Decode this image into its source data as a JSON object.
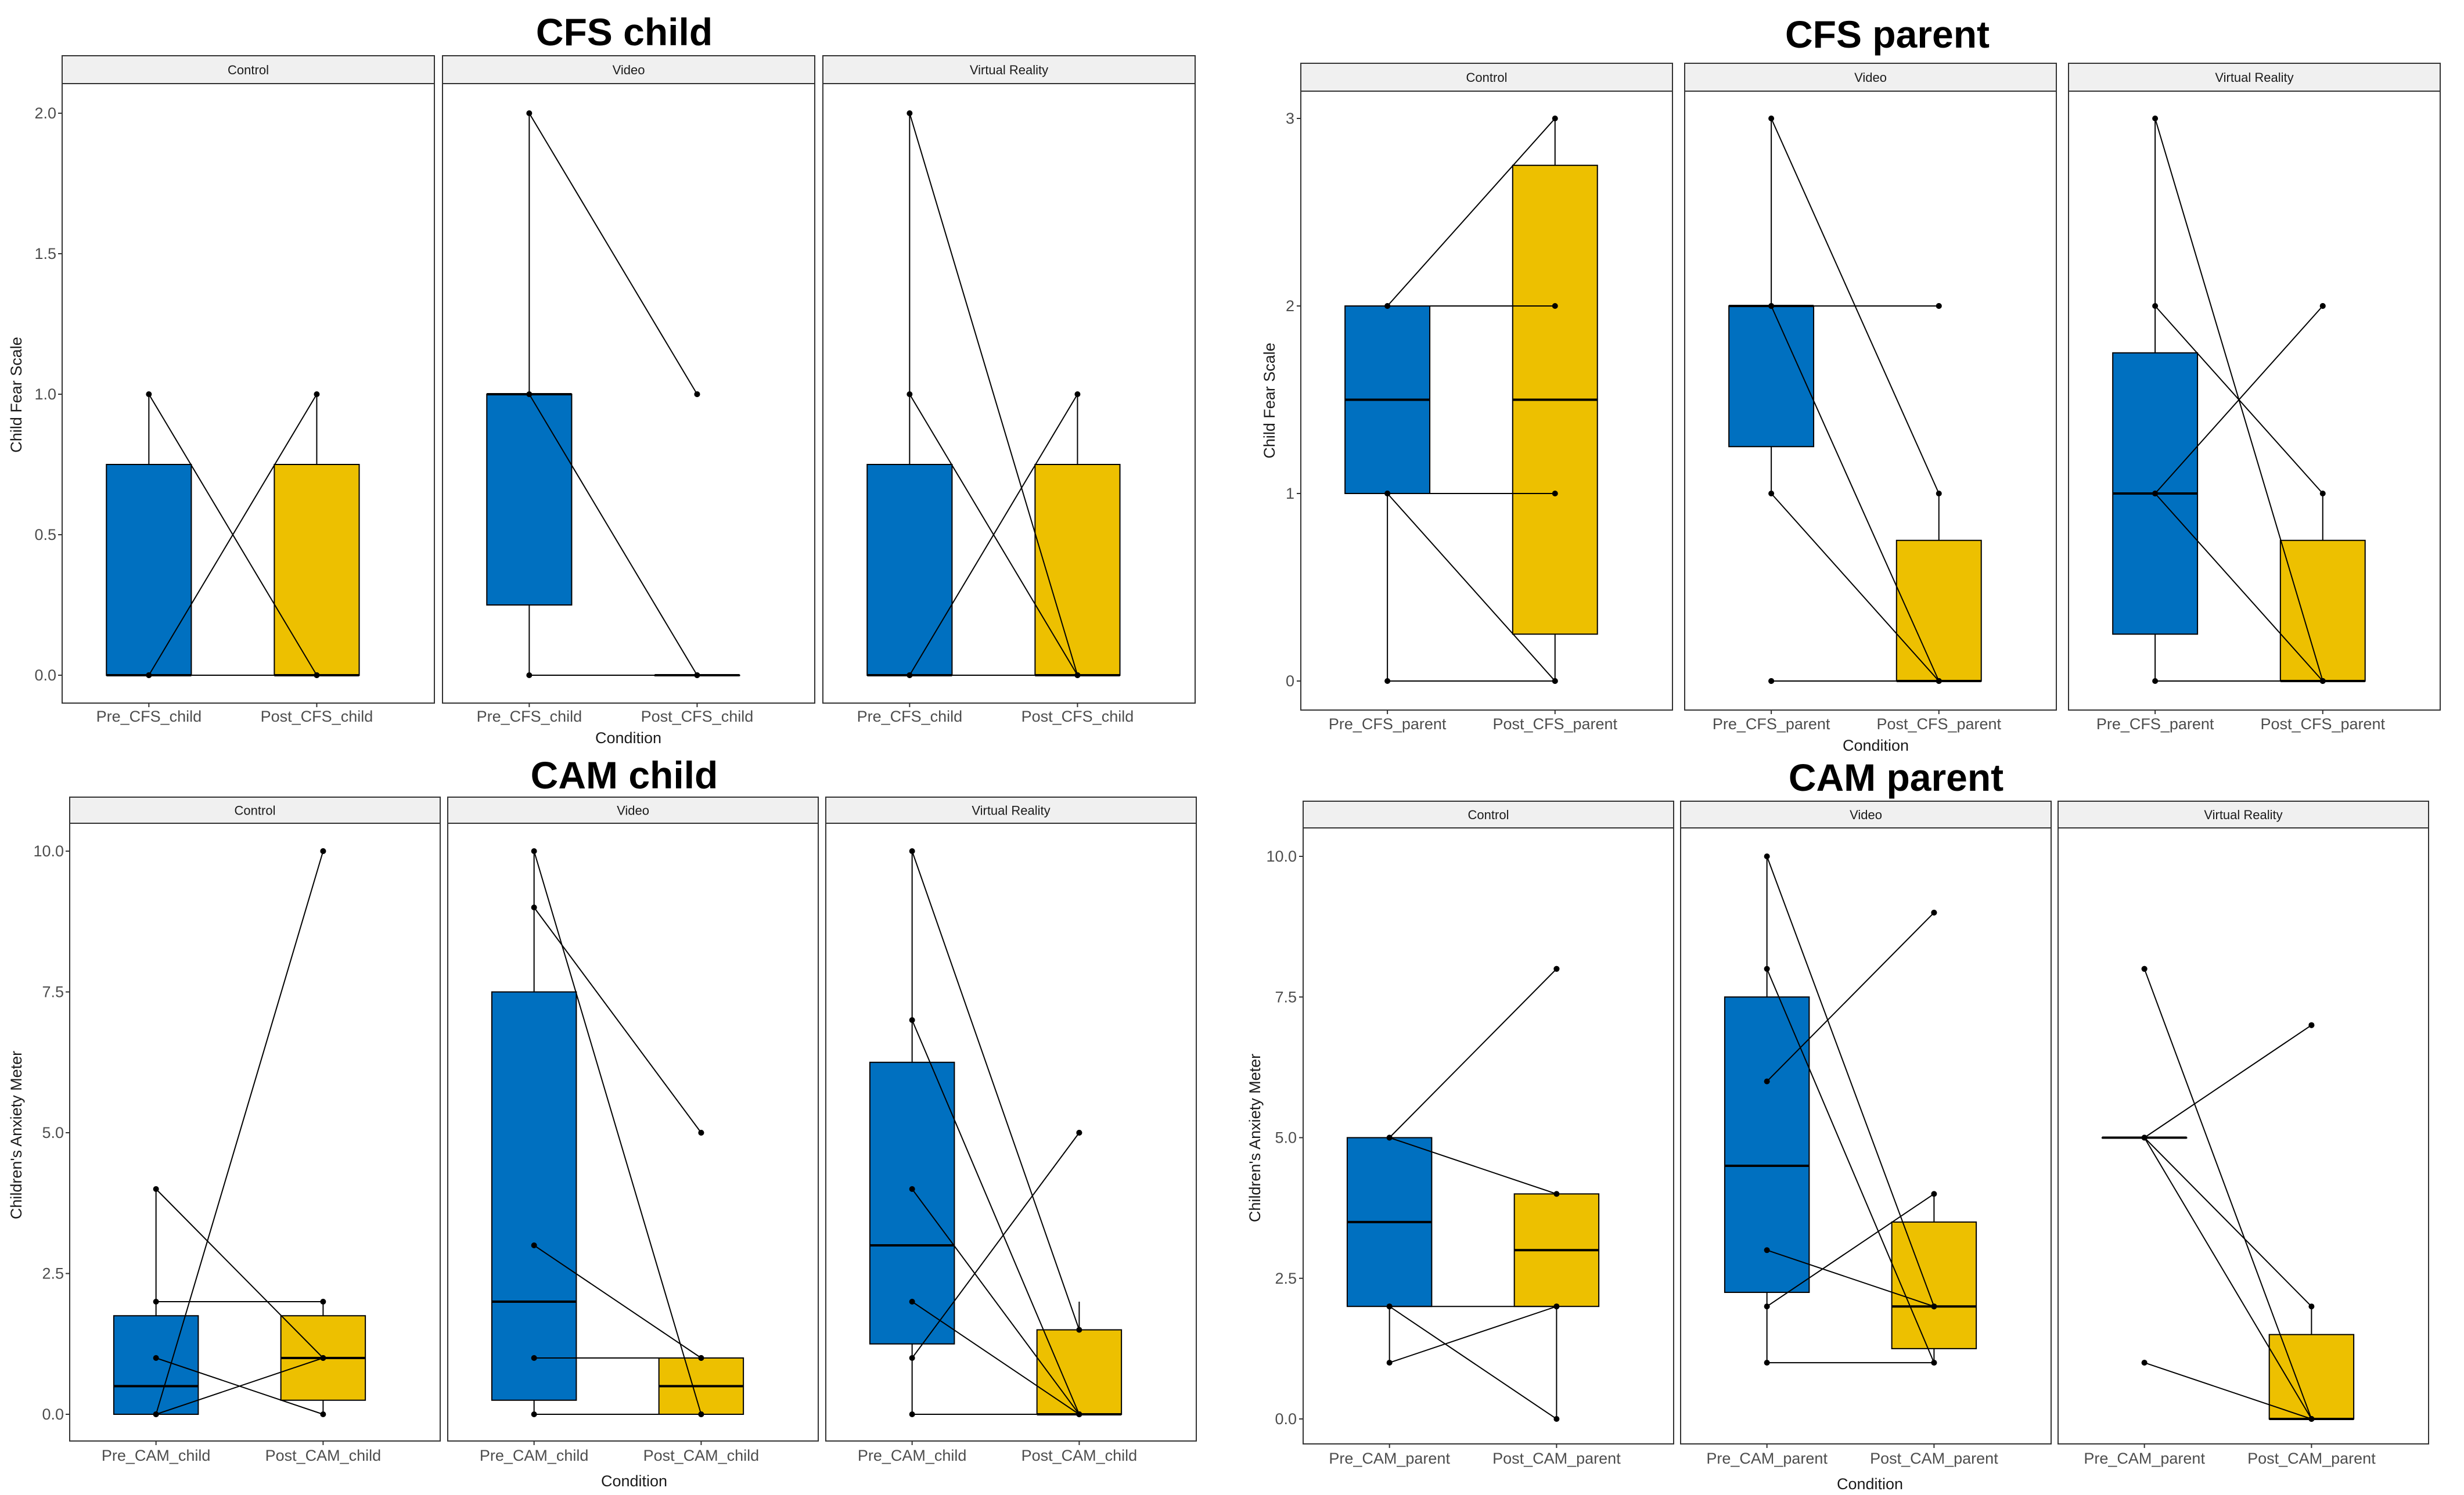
{
  "colors": {
    "pre": "#0070C0",
    "post": "#EDC000",
    "strip": "#F0F0F0",
    "frame": "#333333"
  },
  "chart_data": [
    {
      "type": "boxplot",
      "title": "CFS child",
      "xlabel": "Condition",
      "ylabel": "Child Fear Scale",
      "ylim": [
        0,
        2
      ],
      "yticks": [
        0,
        0.5,
        1,
        1.5,
        2
      ],
      "ytick_labels": [
        "0.0",
        "0.5",
        "1.0",
        "1.5",
        "2.0"
      ],
      "categories": [
        "Pre_CFS_child",
        "Post_CFS_child"
      ],
      "panels": [
        {
          "label": "Control",
          "pre": {
            "q1": 0,
            "median": 0,
            "q3": 0.75,
            "lo": 0,
            "hi": 1
          },
          "post": {
            "q1": 0,
            "median": 0,
            "q3": 0.75,
            "lo": 0,
            "hi": 1
          },
          "pairs": [
            [
              0,
              1
            ],
            [
              1,
              0
            ],
            [
              0,
              0
            ]
          ]
        },
        {
          "label": "Video",
          "pre": {
            "q1": 0.25,
            "median": 1,
            "q3": 1,
            "lo": 0,
            "hi": 2
          },
          "post": {
            "q1": 0,
            "median": 0,
            "q3": 0,
            "lo": 0,
            "hi": 0
          },
          "outliers_post": [
            1
          ],
          "pairs": [
            [
              2,
              1
            ],
            [
              1,
              0
            ],
            [
              0,
              0
            ]
          ]
        },
        {
          "label": "Virtual Reality",
          "pre": {
            "q1": 0,
            "median": 0,
            "q3": 0.75,
            "lo": 0,
            "hi": 2
          },
          "post": {
            "q1": 0,
            "median": 0,
            "q3": 0.75,
            "lo": 0,
            "hi": 1
          },
          "pairs": [
            [
              2,
              0
            ],
            [
              1,
              0
            ],
            [
              0,
              1
            ],
            [
              0,
              0
            ]
          ]
        }
      ]
    },
    {
      "type": "boxplot",
      "title": "CFS parent",
      "xlabel": "Condition",
      "ylabel": "Child Fear Scale",
      "ylim": [
        0,
        3
      ],
      "yticks": [
        0,
        1,
        2,
        3
      ],
      "ytick_labels": [
        "0",
        "1",
        "2",
        "3"
      ],
      "categories": [
        "Pre_CFS_parent",
        "Post_CFS_parent"
      ],
      "panels": [
        {
          "label": "Control",
          "pre": {
            "q1": 1,
            "median": 1.5,
            "q3": 2,
            "lo": 0,
            "hi": 2
          },
          "post": {
            "q1": 0.25,
            "median": 1.5,
            "q3": 2.75,
            "lo": 0,
            "hi": 3
          },
          "pairs": [
            [
              2,
              3
            ],
            [
              2,
              2
            ],
            [
              1,
              1
            ],
            [
              1,
              0
            ],
            [
              0,
              0
            ]
          ]
        },
        {
          "label": "Video",
          "pre": {
            "q1": 1.25,
            "median": 2,
            "q3": 2,
            "lo": 1,
            "hi": 3
          },
          "post": {
            "q1": 0,
            "median": 0,
            "q3": 0.75,
            "lo": 0,
            "hi": 1
          },
          "outliers_post": [
            2
          ],
          "outliers_pre": [
            0
          ],
          "pairs": [
            [
              3,
              1
            ],
            [
              2,
              2
            ],
            [
              2,
              0
            ],
            [
              1,
              0
            ],
            [
              0,
              0
            ]
          ]
        },
        {
          "label": "Virtual Reality",
          "pre": {
            "q1": 0.25,
            "median": 1,
            "q3": 1.75,
            "lo": 0,
            "hi": 3
          },
          "post": {
            "q1": 0,
            "median": 0,
            "q3": 0.75,
            "lo": 0,
            "hi": 1
          },
          "outliers_post": [
            2
          ],
          "pairs": [
            [
              3,
              0
            ],
            [
              2,
              1
            ],
            [
              1,
              2
            ],
            [
              1,
              0
            ],
            [
              0,
              0
            ]
          ]
        }
      ]
    },
    {
      "type": "boxplot",
      "title": "CAM child",
      "xlabel": "Condition",
      "ylabel": "Children's Anxiety Meter",
      "ylim": [
        0,
        10
      ],
      "yticks": [
        0,
        2.5,
        5,
        7.5,
        10
      ],
      "ytick_labels": [
        "0.0",
        "2.5",
        "5.0",
        "7.5",
        "10.0"
      ],
      "categories": [
        "Pre_CAM_child",
        "Post_CAM_child"
      ],
      "panels": [
        {
          "label": "Control",
          "pre": {
            "q1": 0,
            "median": 0.5,
            "q3": 1.75,
            "lo": 0,
            "hi": 4
          },
          "post": {
            "q1": 0.25,
            "median": 1,
            "q3": 1.75,
            "lo": 0,
            "hi": 2
          },
          "outliers_post": [
            10
          ],
          "pairs": [
            [
              4,
              1
            ],
            [
              2,
              2
            ],
            [
              1,
              0
            ],
            [
              0,
              10
            ],
            [
              0,
              1
            ]
          ]
        },
        {
          "label": "Video",
          "pre": {
            "q1": 0.25,
            "median": 2,
            "q3": 7.5,
            "lo": 0,
            "hi": 10
          },
          "post": {
            "q1": 0,
            "median": 0.5,
            "q3": 1,
            "lo": 0,
            "hi": 1
          },
          "outliers_post": [
            5
          ],
          "pairs": [
            [
              10,
              0
            ],
            [
              9,
              5
            ],
            [
              3,
              1
            ],
            [
              1,
              1
            ],
            [
              0,
              0
            ]
          ]
        },
        {
          "label": "Virtual Reality",
          "pre": {
            "q1": 1.25,
            "median": 3,
            "q3": 6.25,
            "lo": 0,
            "hi": 10
          },
          "post": {
            "q1": 0,
            "median": 0,
            "q3": 1.5,
            "lo": 0,
            "hi": 2
          },
          "outliers_post": [
            5
          ],
          "pairs": [
            [
              10,
              1.5
            ],
            [
              7,
              0
            ],
            [
              4,
              0
            ],
            [
              2,
              0
            ],
            [
              1,
              5
            ],
            [
              0,
              0
            ]
          ]
        }
      ]
    },
    {
      "type": "boxplot",
      "title": "CAM parent",
      "xlabel": "Condition",
      "ylabel": "Children's Anxiety Meter",
      "ylim": [
        0,
        10
      ],
      "yticks": [
        0,
        2.5,
        5,
        7.5,
        10
      ],
      "ytick_labels": [
        "0.0",
        "2.5",
        "5.0",
        "7.5",
        "10.0"
      ],
      "categories": [
        "Pre_CAM_parent",
        "Post_CAM_parent"
      ],
      "panels": [
        {
          "label": "Control",
          "pre": {
            "q1": 2,
            "median": 3.5,
            "q3": 5,
            "lo": 1,
            "hi": 5
          },
          "post": {
            "q1": 2,
            "median": 3,
            "q3": 4,
            "lo": 0,
            "hi": 4
          },
          "outliers_post": [
            8
          ],
          "pairs": [
            [
              5,
              8
            ],
            [
              5,
              4
            ],
            [
              2,
              2
            ],
            [
              2,
              0
            ],
            [
              1,
              2
            ]
          ]
        },
        {
          "label": "Video",
          "pre": {
            "q1": 2.25,
            "median": 4.5,
            "q3": 7.5,
            "lo": 1,
            "hi": 10
          },
          "post": {
            "q1": 1.25,
            "median": 2,
            "q3": 3.5,
            "lo": 1,
            "hi": 4
          },
          "outliers_post": [
            9
          ],
          "pairs": [
            [
              10,
              2
            ],
            [
              8,
              1
            ],
            [
              6,
              9
            ],
            [
              3,
              2
            ],
            [
              2,
              4
            ],
            [
              1,
              1
            ]
          ]
        },
        {
          "label": "Virtual Reality",
          "pre": {
            "q1": 5,
            "median": 5,
            "q3": 5,
            "lo": 5,
            "hi": 5
          },
          "post": {
            "q1": 0,
            "median": 0,
            "q3": 1.5,
            "lo": 0,
            "hi": 2
          },
          "outliers_pre": [
            8,
            1
          ],
          "outliers_post": [
            7
          ],
          "pairs": [
            [
              8,
              0
            ],
            [
              5,
              7
            ],
            [
              5,
              2
            ],
            [
              5,
              0
            ],
            [
              1,
              0
            ]
          ]
        }
      ]
    }
  ]
}
